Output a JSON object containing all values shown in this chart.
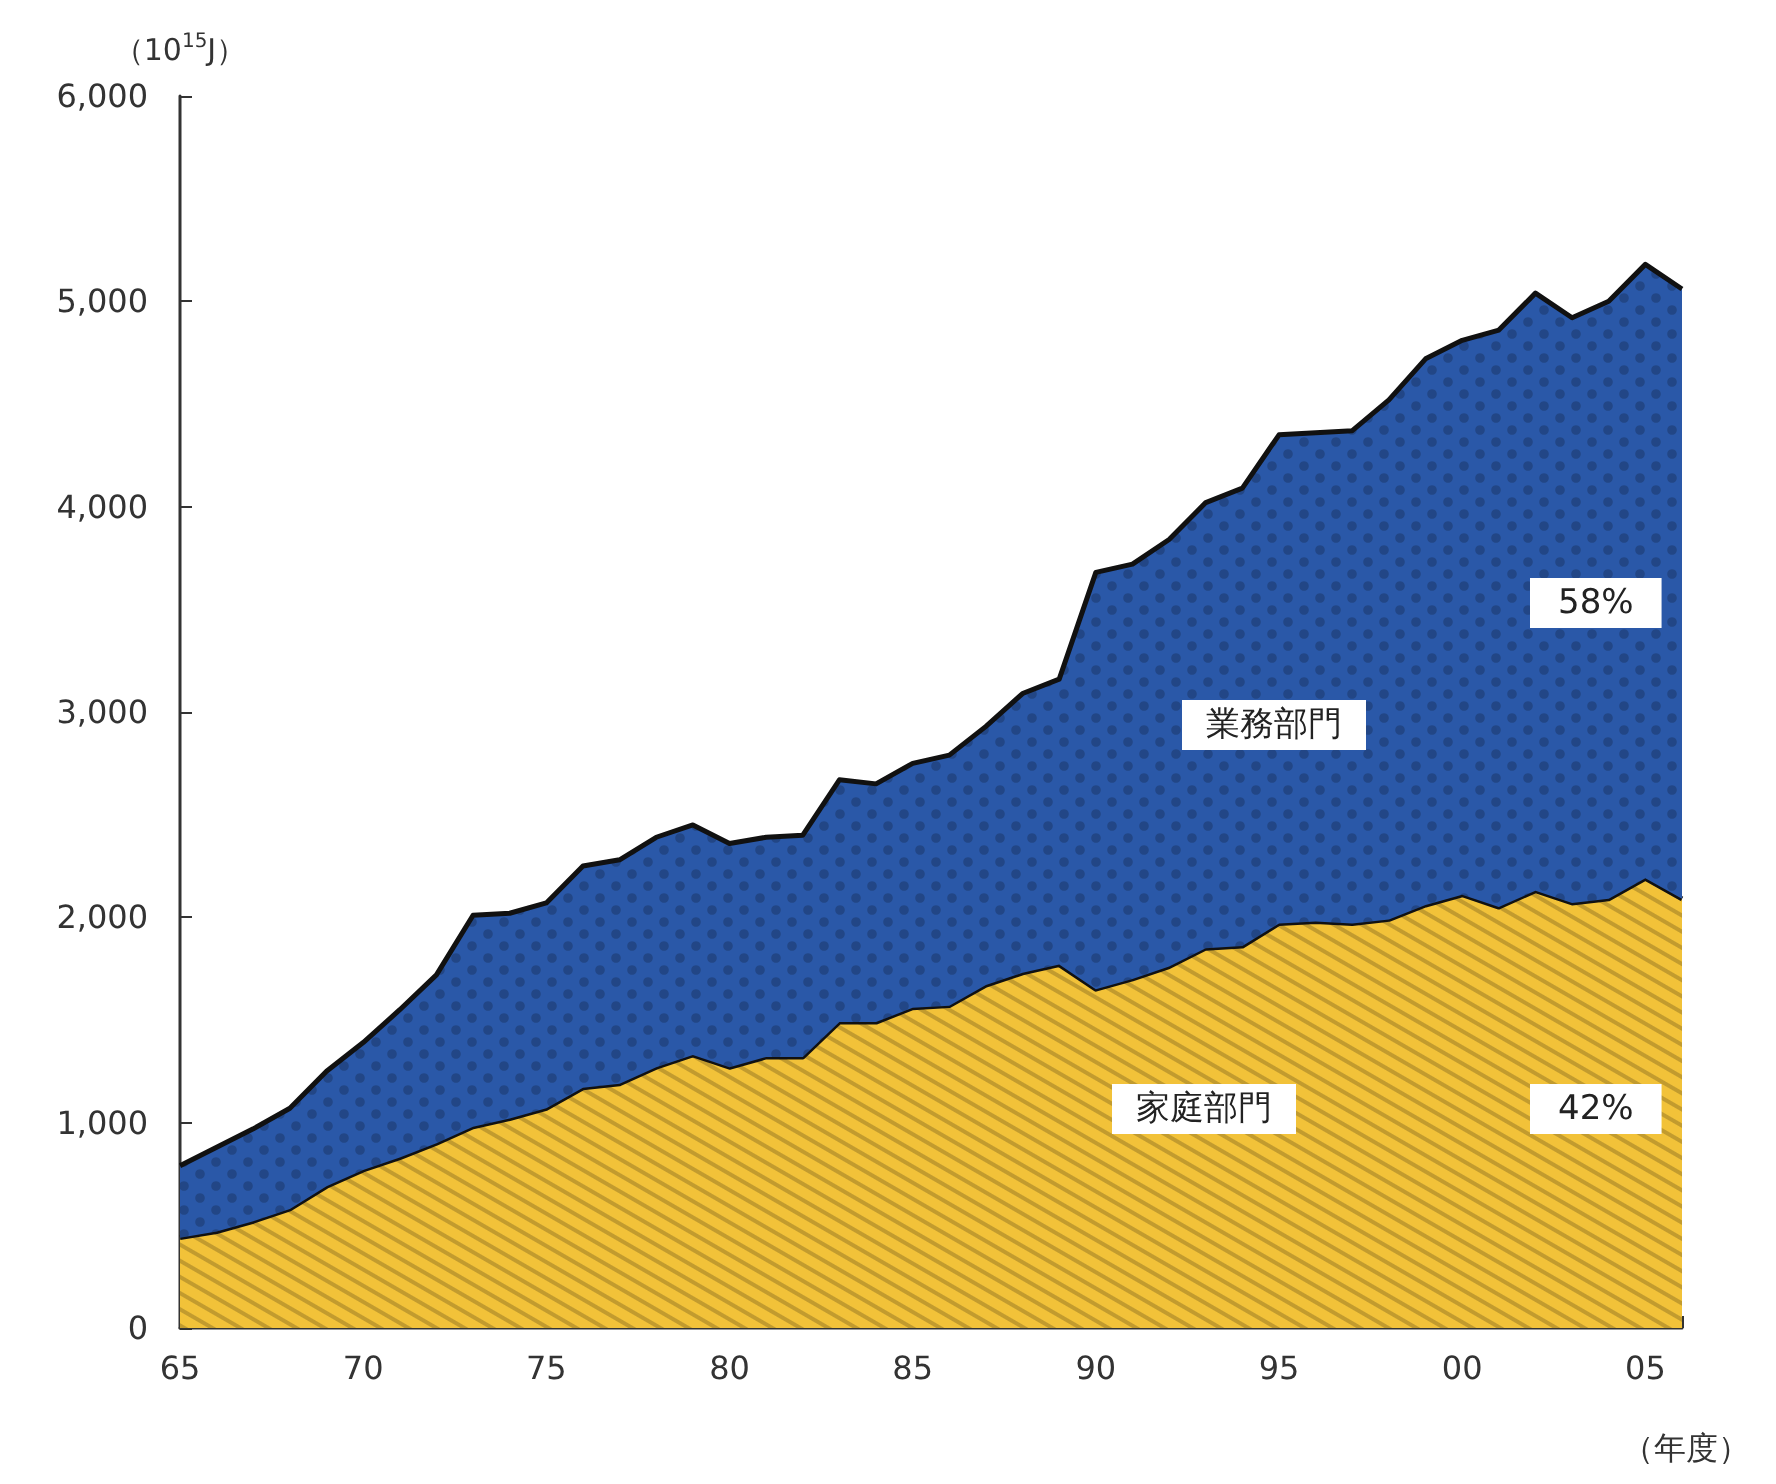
{
  "chart_data": {
    "type": "area",
    "stacked": true,
    "ylabel": "（10$^{15}$J）",
    "xlabel": "（年度）",
    "categories": [
      "65",
      null,
      null,
      null,
      null,
      "70",
      null,
      null,
      null,
      null,
      "75",
      null,
      null,
      null,
      null,
      "80",
      null,
      null,
      null,
      null,
      "85",
      null,
      null,
      null,
      null,
      "90",
      null,
      null,
      null,
      null,
      "95",
      null,
      null,
      null,
      null,
      "00",
      null,
      null,
      null,
      null,
      "05",
      null
    ],
    "series": [
      {
        "name": "家庭部門",
        "color": "#f2c239",
        "values": [
          440,
          470,
          520,
          580,
          690,
          770,
          830,
          900,
          980,
          1020,
          1070,
          1170,
          1190,
          1270,
          1330,
          1270,
          1320,
          1320,
          1490,
          1490,
          1560,
          1570,
          1670,
          1730,
          1770,
          1650,
          1700,
          1760,
          1850,
          1860,
          1970,
          1980,
          1970,
          1990,
          2060,
          2110,
          2050,
          2130,
          2070,
          2090,
          2190,
          2090
        ]
      },
      {
        "name": "業務部門",
        "color": "#2a58a8",
        "values": [
          350,
          410,
          450,
          490,
          560,
          620,
          720,
          820,
          1030,
          1000,
          1000,
          1080,
          1090,
          1120,
          1120,
          1090,
          1070,
          1080,
          1180,
          1160,
          1190,
          1220,
          1260,
          1360,
          1390,
          2030,
          2020,
          2080,
          2170,
          2230,
          2380,
          2380,
          2400,
          2530,
          2660,
          2700,
          2810,
          2910,
          2850,
          2910,
          2990,
          2970
        ]
      }
    ],
    "annotations": [
      "58%",
      "42%"
    ],
    "ylim": [
      0,
      6000
    ],
    "yticks": [
      {
        "value": 0,
        "label": "0"
      },
      {
        "value": 1000,
        "label": "1,000"
      },
      {
        "value": 2000,
        "label": "2,000"
      },
      {
        "value": 3000,
        "label": "3,000"
      },
      {
        "value": 4000,
        "label": "4,000"
      },
      {
        "value": 5000,
        "label": "5,000"
      },
      {
        "value": 6000,
        "label": "6,000"
      }
    ],
    "grid": false,
    "legend": false
  }
}
